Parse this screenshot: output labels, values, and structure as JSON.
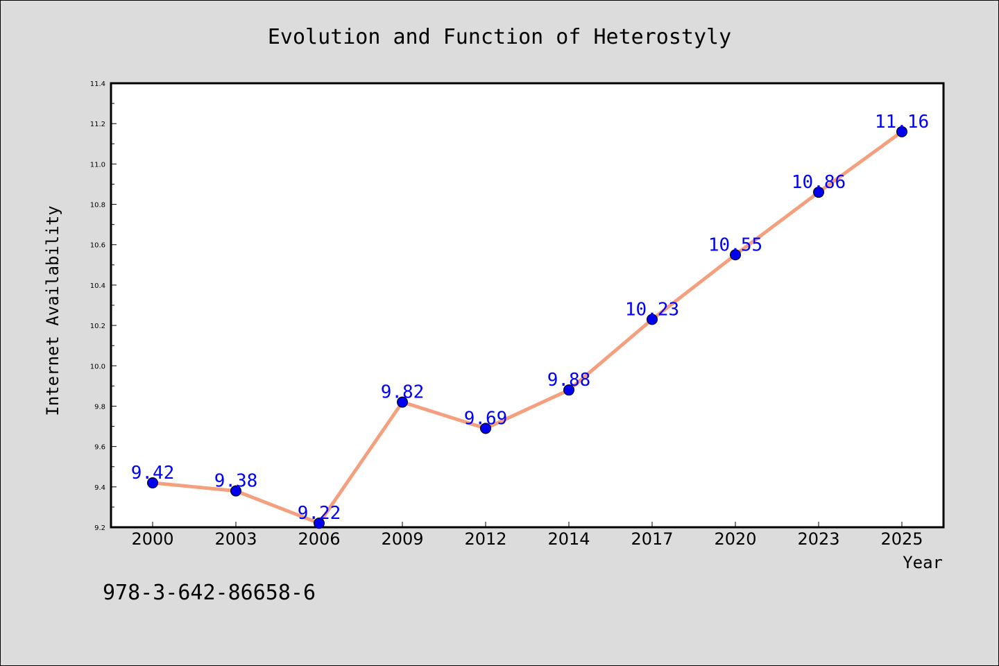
{
  "chart_data": {
    "type": "line",
    "title": "Evolution and Function of Heterostyly",
    "xlabel": "Year",
    "ylabel": "Internet Availability",
    "categories": [
      "2000",
      "2003",
      "2006",
      "2009",
      "2012",
      "2014",
      "2017",
      "2020",
      "2023",
      "2025"
    ],
    "series": [
      {
        "values": [
          9.42,
          9.38,
          9.22,
          9.82,
          9.69,
          9.88,
          10.23,
          10.55,
          10.86,
          11.16
        ],
        "labels": [
          "9.42",
          "9.38",
          "9.22",
          "9.82",
          "9.69",
          "9.88",
          "10.23",
          "10.55",
          "10.86",
          "11.16"
        ],
        "line_color": "#f4a07f",
        "marker_color": "#0000ee"
      }
    ],
    "ylim": [
      9.2,
      11.4
    ],
    "yticks": [
      "9.2",
      "9.4",
      "9.6",
      "9.8",
      "10.0",
      "10.2",
      "10.4",
      "10.6",
      "10.8",
      "11.0",
      "11.2",
      "11.4"
    ],
    "grid": false,
    "label_color": "#0000ff"
  },
  "annotation": "978-3-642-86658-6"
}
